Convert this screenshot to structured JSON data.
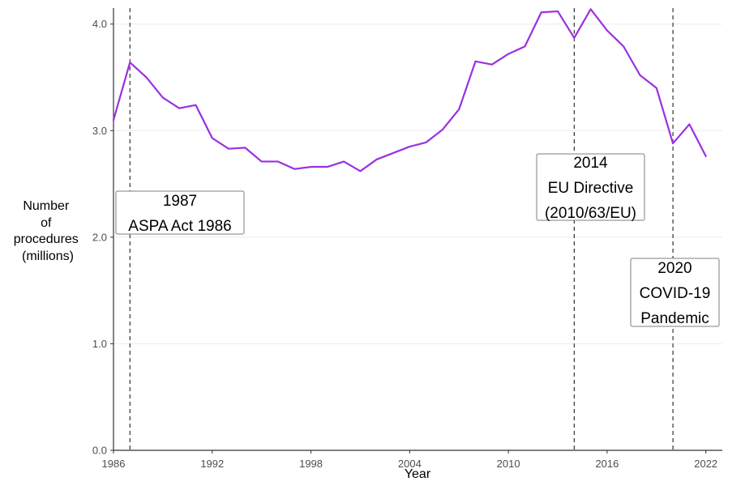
{
  "chart_data": {
    "type": "line",
    "title": "",
    "xlabel": "Year",
    "ylabel": [
      "Number",
      "of",
      "procedures",
      "(millions)"
    ],
    "xlim": [
      1986,
      2023
    ],
    "ylim": [
      0,
      4.15
    ],
    "xticks": [
      1986,
      1992,
      1998,
      2004,
      2010,
      2016,
      2022
    ],
    "yticks": [
      0,
      1,
      2,
      3,
      4
    ],
    "ytick_labels": [
      "0.0",
      "1.0",
      "2.0",
      "3.0",
      "4.0"
    ],
    "grid": "horizontal",
    "series": [
      {
        "name": "Procedures",
        "color": "#9b30e0",
        "x": [
          1986,
          1987,
          1988,
          1989,
          1990,
          1991,
          1992,
          1993,
          1994,
          1995,
          1996,
          1997,
          1998,
          1999,
          2000,
          2001,
          2002,
          2003,
          2004,
          2005,
          2006,
          2007,
          2008,
          2009,
          2010,
          2011,
          2012,
          2013,
          2014,
          2015,
          2016,
          2017,
          2018,
          2019,
          2020,
          2021,
          2022
        ],
        "values": [
          3.1,
          3.64,
          3.5,
          3.31,
          3.21,
          3.24,
          2.93,
          2.83,
          2.84,
          2.71,
          2.71,
          2.64,
          2.66,
          2.66,
          2.71,
          2.62,
          2.73,
          2.79,
          2.85,
          2.89,
          3.01,
          3.2,
          3.65,
          3.62,
          3.72,
          3.79,
          4.11,
          4.12,
          3.87,
          4.14,
          3.94,
          3.79,
          3.52,
          3.4,
          2.88,
          3.06,
          2.76
        ]
      }
    ],
    "annotations": [
      {
        "year": 1987,
        "lines": [
          "1987",
          "ASPA Act 1986"
        ]
      },
      {
        "year": 2014,
        "lines": [
          "2014",
          "EU Directive",
          "(2010/63/EU)"
        ]
      },
      {
        "year": 2020,
        "lines": [
          "2020",
          "COVID-19",
          "Pandemic"
        ]
      }
    ]
  }
}
